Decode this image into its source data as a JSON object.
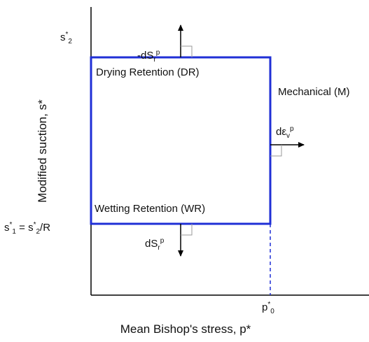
{
  "y_axis_label": "Modified suction, s*",
  "x_axis_label": "Mean Bishop's stress, p*",
  "region_labels": {
    "drying": "Drying Retention (DR)",
    "wetting": "Wetting Retention (WR)",
    "mechanical": "Mechanical (M)"
  },
  "symbols": {
    "s2": [
      {
        "t": "s"
      },
      {
        "t": "*",
        "pos": "sup"
      },
      {
        "t": "2",
        "pos": "sub"
      }
    ],
    "s1": [
      {
        "t": "s"
      },
      {
        "t": "*",
        "pos": "sup"
      },
      {
        "t": "1",
        "pos": "sub"
      },
      {
        "t": " = s"
      },
      {
        "t": "*",
        "pos": "sup"
      },
      {
        "t": "2",
        "pos": "sub"
      },
      {
        "t": "/R"
      }
    ],
    "p0": [
      {
        "t": "p"
      },
      {
        "t": "*",
        "pos": "sup"
      },
      {
        "t": "0",
        "pos": "sub"
      }
    ],
    "dSr_up": [
      {
        "t": "-dS"
      },
      {
        "t": "r",
        "pos": "sub"
      },
      {
        "t": "p",
        "pos": "sup"
      }
    ],
    "dSr_down": [
      {
        "t": "dS"
      },
      {
        "t": "r",
        "pos": "sub"
      },
      {
        "t": "p",
        "pos": "sup"
      }
    ],
    "deps": [
      {
        "t": "dε"
      },
      {
        "t": "v",
        "pos": "sub"
      },
      {
        "t": "p",
        "pos": "sup"
      }
    ]
  }
}
